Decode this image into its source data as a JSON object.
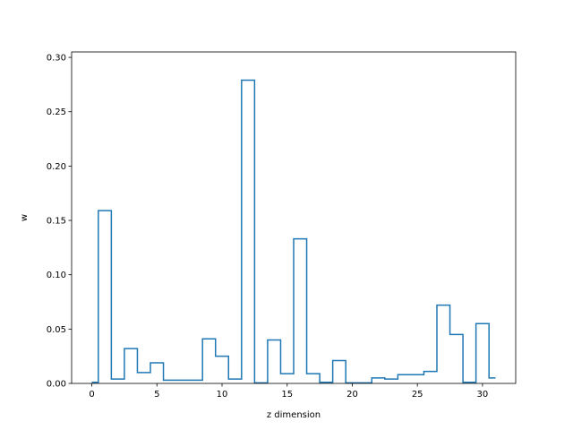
{
  "chart_data": {
    "type": "line",
    "drawstyle": "steps-mid",
    "title": "",
    "xlabel": "z dimension",
    "ylabel": "w",
    "xlim": [
      -1.55,
      32.55
    ],
    "ylim": [
      0.0,
      0.305
    ],
    "xticks": [
      0,
      5,
      10,
      15,
      20,
      25,
      30
    ],
    "xtick_labels": [
      "0",
      "5",
      "10",
      "15",
      "20",
      "25",
      "30"
    ],
    "yticks": [
      0.0,
      0.05,
      0.1,
      0.15,
      0.2,
      0.25,
      0.3
    ],
    "ytick_labels": [
      "0.00",
      "0.05",
      "0.10",
      "0.15",
      "0.20",
      "0.25",
      "0.30"
    ],
    "grid": false,
    "line_color": "#1f77b4",
    "x": [
      0,
      1,
      2,
      3,
      4,
      5,
      6,
      7,
      8,
      9,
      10,
      11,
      12,
      13,
      14,
      15,
      16,
      17,
      18,
      19,
      20,
      21,
      22,
      23,
      24,
      25,
      26,
      27,
      28,
      29,
      30,
      31
    ],
    "values": [
      0.001,
      0.159,
      0.004,
      0.032,
      0.01,
      0.019,
      0.003,
      0.003,
      0.003,
      0.041,
      0.025,
      0.004,
      0.279,
      0.0005,
      0.04,
      0.009,
      0.133,
      0.009,
      0.001,
      0.021,
      0.0005,
      0.0005,
      0.005,
      0.004,
      0.008,
      0.008,
      0.011,
      0.072,
      0.045,
      0.001,
      0.055,
      0.005
    ]
  }
}
